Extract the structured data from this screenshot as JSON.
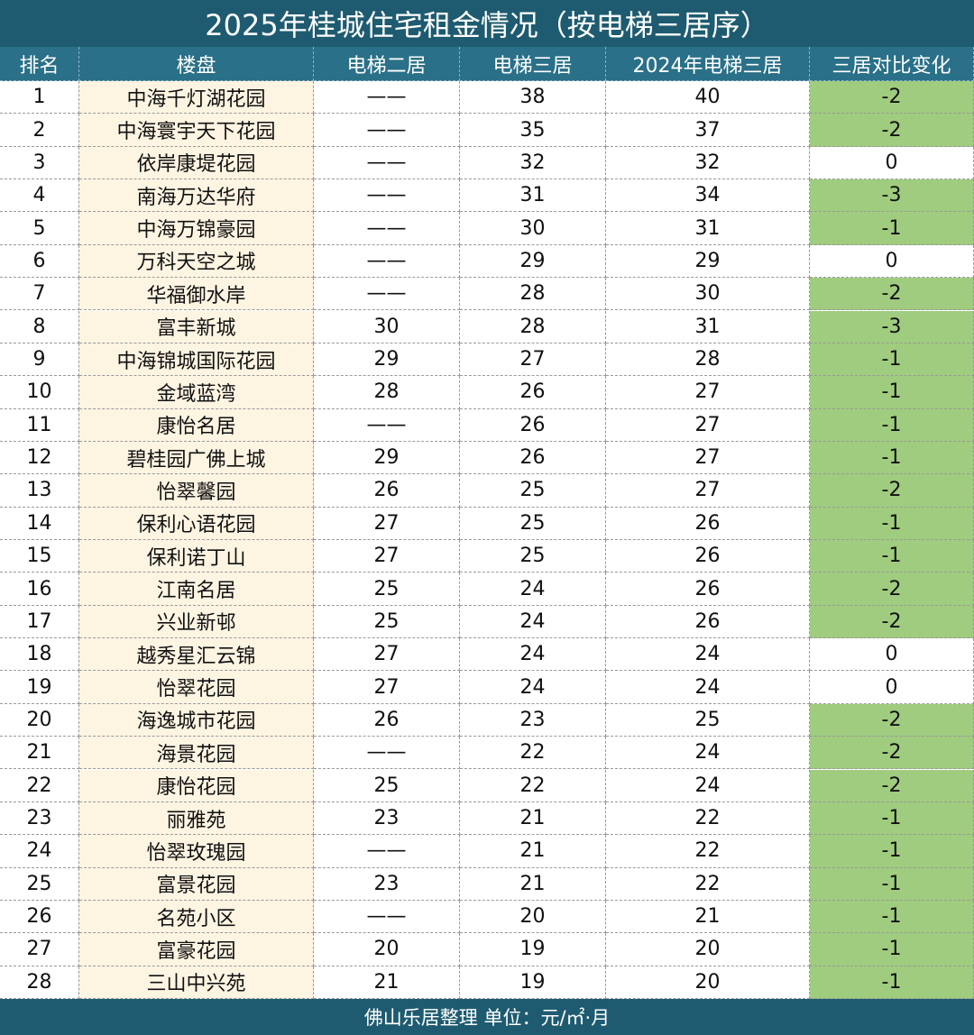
{
  "title": "2025年桂城住宅租金情况（按电梯三居序）",
  "table": {
    "header": [
      "排名",
      "楼盘",
      "电梯二居",
      "电梯三居",
      "2024年电梯三居",
      "三居对比变化"
    ],
    "rows": [
      [
        1,
        "中海千灯湖花园",
        "——",
        38,
        40,
        -2
      ],
      [
        2,
        "中海寰宇天下花园",
        "——",
        35,
        37,
        -2
      ],
      [
        3,
        "依岸康堤花园",
        "——",
        32,
        32,
        0
      ],
      [
        4,
        "南海万达华府",
        "——",
        31,
        34,
        -3
      ],
      [
        5,
        "中海万锦豪园",
        "——",
        30,
        31,
        -1
      ],
      [
        6,
        "万科天空之城",
        "——",
        29,
        29,
        0
      ],
      [
        7,
        "华福御水岸",
        "——",
        28,
        30,
        -2
      ],
      [
        8,
        "富丰新城",
        30,
        28,
        31,
        -3
      ],
      [
        9,
        "中海锦城国际花园",
        29,
        27,
        28,
        -1
      ],
      [
        10,
        "金域蓝湾",
        28,
        26,
        27,
        -1
      ],
      [
        11,
        "康怡名居",
        "——",
        26,
        27,
        -1
      ],
      [
        12,
        "碧桂园广佛上城",
        29,
        26,
        27,
        -1
      ],
      [
        13,
        "怡翠馨园",
        26,
        25,
        27,
        -2
      ],
      [
        14,
        "保利心语花园",
        27,
        25,
        26,
        -1
      ],
      [
        15,
        "保利诺丁山",
        27,
        25,
        26,
        -1
      ],
      [
        16,
        "江南名居",
        25,
        24,
        26,
        -2
      ],
      [
        17,
        "兴业新邨",
        25,
        24,
        26,
        -2
      ],
      [
        18,
        "越秀星汇云锦",
        27,
        24,
        24,
        0
      ],
      [
        19,
        "怡翠花园",
        27,
        24,
        24,
        0
      ],
      [
        20,
        "海逸城市花园",
        26,
        23,
        25,
        -2
      ],
      [
        21,
        "海景花园",
        "——",
        22,
        24,
        -2
      ],
      [
        22,
        "康怡花园",
        25,
        22,
        24,
        -2
      ],
      [
        23,
        "丽雅苑",
        23,
        21,
        22,
        -1
      ],
      [
        24,
        "怡翠玫瑰园",
        "——",
        21,
        22,
        -1
      ],
      [
        25,
        "富景花园",
        23,
        21,
        22,
        -1
      ],
      [
        26,
        "名苑小区",
        "——",
        20,
        21,
        -1
      ],
      [
        27,
        "富豪花园",
        20,
        19,
        20,
        -1
      ],
      [
        28,
        "三山中兴苑",
        21,
        19,
        20,
        -1
      ]
    ]
  },
  "footer": "佛山乐居整理 单位：元/㎡·月"
}
